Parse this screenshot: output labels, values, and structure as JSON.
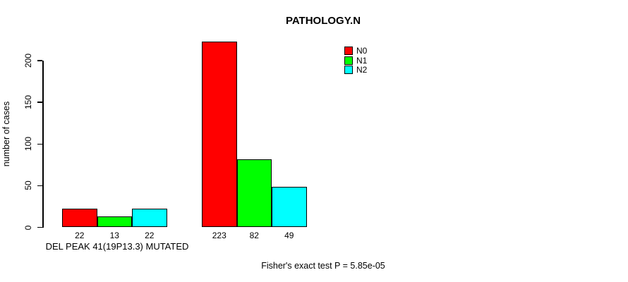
{
  "chart_data": {
    "type": "bar",
    "title": "PATHOLOGY.N",
    "xlabel": "DEL PEAK 41(19P13.3) MUTATED",
    "ylabel": "number of cases",
    "ylim": [
      0,
      200
    ],
    "yticks": [
      0,
      50,
      100,
      150,
      200
    ],
    "grid": false,
    "legend_position": "top-right",
    "groups": [
      "DEL PEAK 41(19P13.3) MUTATED",
      ""
    ],
    "series": [
      {
        "name": "N0",
        "color": "#ff0000",
        "values": [
          22,
          223
        ]
      },
      {
        "name": "N1",
        "color": "#00ff00",
        "values": [
          13,
          82
        ]
      },
      {
        "name": "N2",
        "color": "#00ffff",
        "values": [
          22,
          49
        ]
      }
    ],
    "bar_value_labels": [
      [
        "22",
        "13",
        "22"
      ],
      [
        "223",
        "82",
        "49"
      ]
    ],
    "annotation": "Fisher's exact test P = 5.85e-05"
  },
  "colors": {
    "foreground": "#000000",
    "background": "#ffffff"
  }
}
